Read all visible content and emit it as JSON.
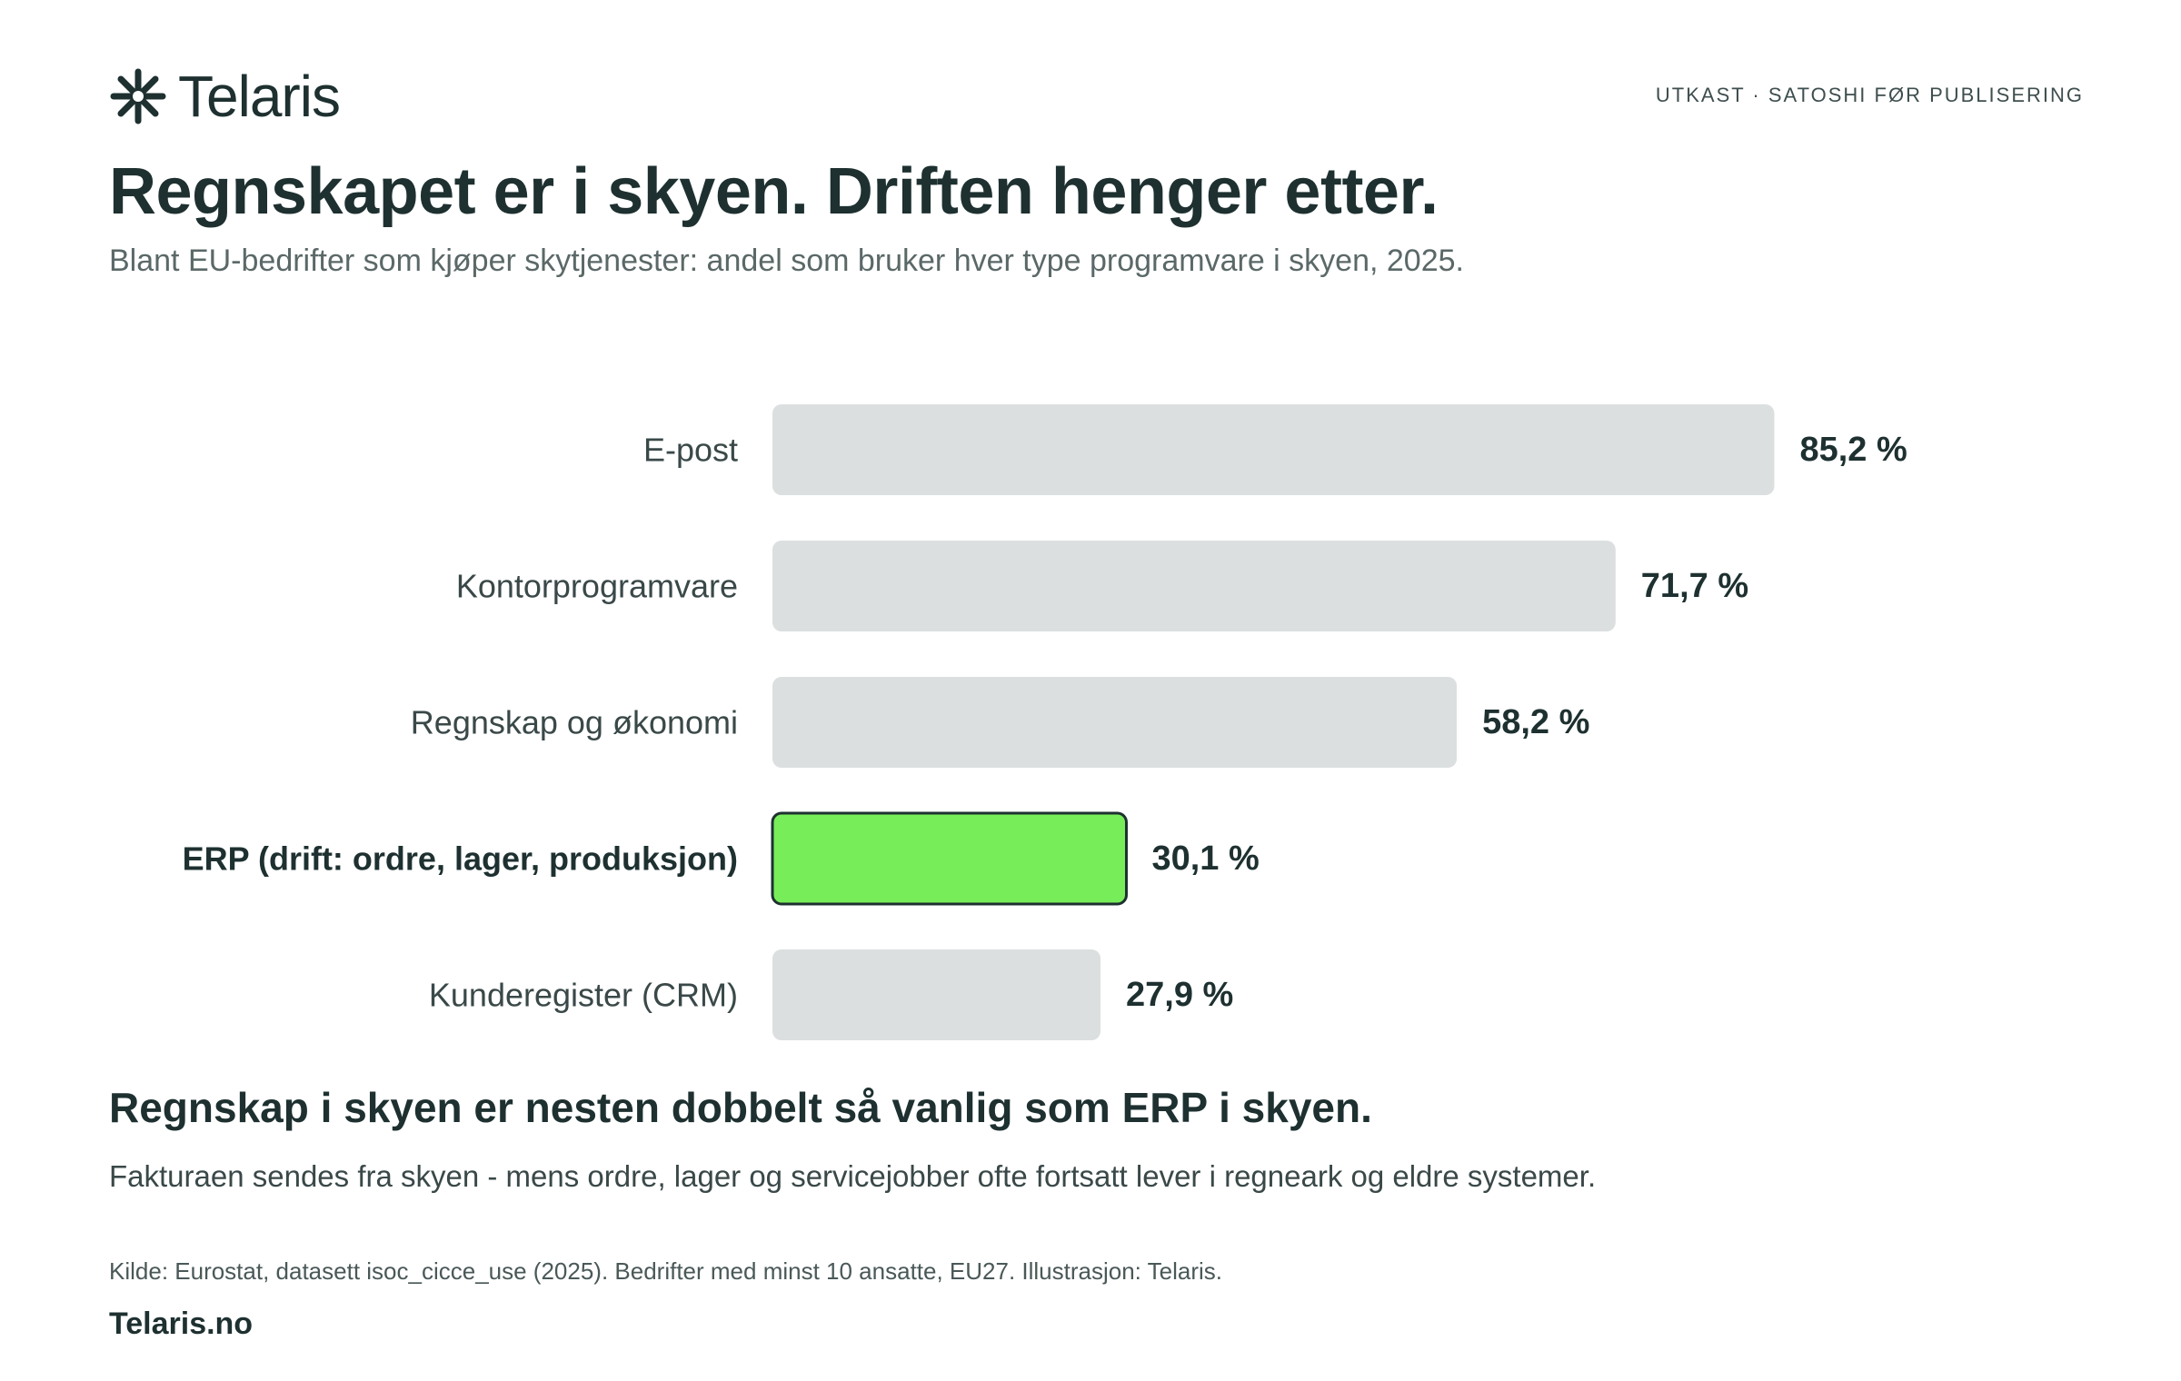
{
  "header": {
    "brand": "Telaris",
    "logo_icon": "asterisk-icon",
    "draft_note": "UTKAST · SATOSHI FØR PUBLISERING"
  },
  "chart_data": {
    "type": "bar",
    "orientation": "horizontal",
    "title": "Regnskapet er i skyen. Driften henger etter.",
    "subtitle": "Blant EU-bedrifter som kjøper skytjenester: andel som bruker hver type programvare i skyen, 2025.",
    "categories": [
      "E-post",
      "Kontorprogramvare",
      "Regnskap og økonomi",
      "ERP (drift: ordre, lager, produksjon)",
      "Kunderegister (CRM)"
    ],
    "values": [
      85.2,
      71.7,
      58.2,
      30.1,
      27.9
    ],
    "value_labels": [
      "85,2 %",
      "71,7 %",
      "58,2 %",
      "30,1 %",
      "27,9 %"
    ],
    "highlight_index": 3,
    "xlim": [
      0,
      100
    ],
    "grid": false,
    "xlabel": "",
    "ylabel": "",
    "colors": {
      "bar": "#dcdfe0",
      "highlight": "#78ed5a",
      "highlight_stroke": "#1e3030"
    }
  },
  "takeaway": {
    "headline": "Regnskap i skyen er nesten dobbelt så vanlig som ERP i skyen.",
    "detail": "Fakturaen sendes fra skyen - mens ordre, lager og servicejobber ofte fortsatt lever i regneark og eldre systemer."
  },
  "footer": {
    "source": "Kilde: Eurostat, datasett isoc_cicce_use (2025). Bedrifter med minst 10 ansatte, EU27. Illustrasjon: Telaris.",
    "site": "Telaris.no"
  }
}
